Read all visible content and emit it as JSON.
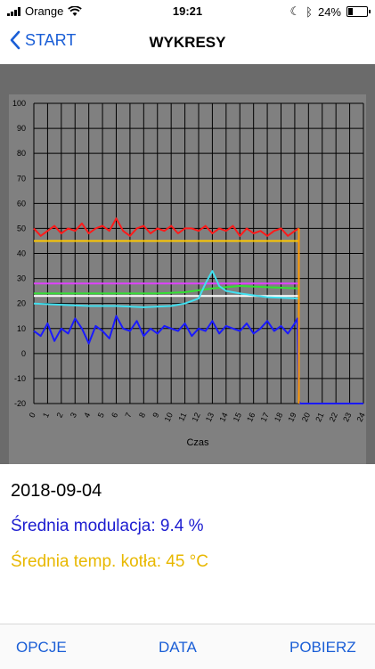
{
  "status": {
    "carrier": "Orange",
    "time": "19:21",
    "battery": "24%",
    "battery_level": 0.24
  },
  "nav": {
    "back_label": "START",
    "title": "WYKRESY"
  },
  "chart_data": {
    "type": "line",
    "xlabel": "Czas",
    "xlim": [
      0,
      24
    ],
    "ylim": [
      -20,
      100
    ],
    "x_ticks": [
      0,
      1,
      2,
      3,
      4,
      5,
      6,
      7,
      8,
      9,
      10,
      11,
      12,
      13,
      14,
      15,
      16,
      17,
      18,
      19,
      20,
      21,
      22,
      23,
      24
    ],
    "y_ticks": [
      -20,
      -10,
      0,
      10,
      20,
      30,
      40,
      50,
      60,
      70,
      80,
      90,
      100
    ],
    "grid": true,
    "series": [
      {
        "color": "#ff1a1a",
        "x": [
          0,
          0.5,
          1,
          1.5,
          2,
          2.5,
          3,
          3.5,
          4,
          4.5,
          5,
          5.5,
          6,
          6.5,
          7,
          7.5,
          8,
          8.5,
          9,
          9.5,
          10,
          10.5,
          11,
          11.5,
          12,
          12.5,
          13,
          13.5,
          14,
          14.5,
          15,
          15.5,
          16,
          16.5,
          17,
          17.5,
          18,
          18.5,
          19,
          19.3
        ],
        "y": [
          50,
          47,
          49,
          51,
          48,
          50,
          49,
          52,
          48,
          50,
          51,
          49,
          54,
          49,
          47,
          50,
          51,
          48,
          50,
          49,
          51,
          48,
          50,
          50,
          49,
          51,
          48,
          50,
          49,
          51,
          47,
          50,
          48,
          49,
          47,
          49,
          50,
          47,
          49,
          50
        ]
      },
      {
        "color": "#ffc800",
        "x": [
          0,
          19.3
        ],
        "y": [
          45,
          45
        ]
      },
      {
        "color": "#e040ff",
        "x": [
          0,
          19.3
        ],
        "y": [
          28,
          28
        ]
      },
      {
        "color": "#33e033",
        "x": [
          0,
          5,
          9,
          11,
          13,
          15,
          17,
          19.3
        ],
        "y": [
          24,
          24,
          24,
          24.5,
          26,
          27,
          26.5,
          26
        ]
      },
      {
        "color": "#ffffff",
        "x": [
          0,
          19.3
        ],
        "y": [
          23,
          23
        ]
      },
      {
        "color": "#40e0f0",
        "x": [
          0,
          2,
          4,
          6,
          8,
          10,
          11,
          12,
          12.5,
          13,
          13.5,
          14,
          15,
          17,
          19.3
        ],
        "y": [
          20,
          19.5,
          19,
          19,
          18.5,
          19,
          20,
          22,
          28,
          33,
          27,
          25,
          24,
          22.5,
          22
        ]
      },
      {
        "color": "#1a1aff",
        "x": [
          0,
          0.5,
          1,
          1.5,
          2,
          2.5,
          3,
          3.5,
          4,
          4.5,
          5,
          5.5,
          6,
          6.5,
          7,
          7.5,
          8,
          8.5,
          9,
          9.5,
          10,
          10.5,
          11,
          11.5,
          12,
          12.5,
          13,
          13.5,
          14,
          14.5,
          15,
          15.5,
          16,
          16.5,
          17,
          17.5,
          18,
          18.5,
          19,
          19.2,
          19.3,
          19.4,
          20,
          24
        ],
        "y": [
          9,
          7,
          12,
          5,
          10,
          8,
          14,
          10,
          4,
          11,
          9,
          6,
          15,
          10,
          9,
          13,
          7,
          10,
          8,
          11,
          10,
          9,
          12,
          7,
          10,
          9,
          13,
          8,
          11,
          10,
          9,
          12,
          8,
          10,
          13,
          9,
          11,
          8,
          12,
          14,
          -19,
          -20,
          -20,
          -20
        ]
      },
      {
        "color": "#ff9900",
        "x": [
          19.3,
          19.3
        ],
        "y": [
          50,
          -20
        ]
      }
    ]
  },
  "info": {
    "date": "2018-09-04",
    "avg_modulation": "Średnia modulacja: 9.4 %",
    "avg_boiler_temp": "Średnia temp. kotła: 45 °C"
  },
  "tabs": {
    "options": "OPCJE",
    "data": "DATA",
    "fetch": "POBIERZ"
  }
}
